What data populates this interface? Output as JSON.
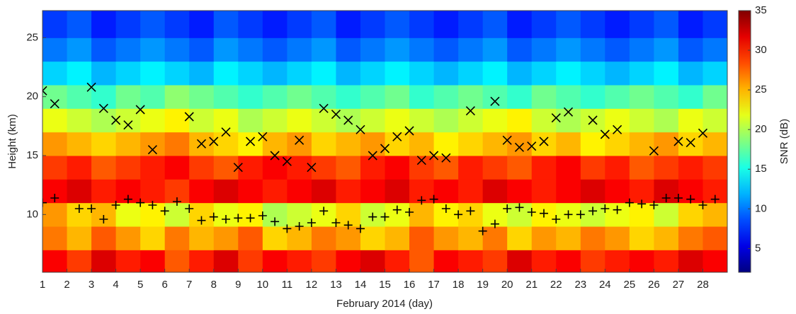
{
  "chart_data": {
    "type": "heatmap",
    "xlabel": "February 2014 (day)",
    "ylabel": "Height (km)",
    "xlim": [
      1,
      29
    ],
    "ylim": [
      5.1,
      27.3
    ],
    "xticks": [
      1,
      2,
      3,
      4,
      5,
      6,
      7,
      8,
      9,
      10,
      11,
      12,
      13,
      14,
      15,
      16,
      17,
      18,
      19,
      20,
      21,
      22,
      23,
      24,
      25,
      26,
      27,
      28
    ],
    "yticks": [
      10,
      15,
      20,
      25
    ],
    "x_edges": [
      1,
      2,
      3,
      4,
      5,
      6,
      7,
      8,
      9,
      10,
      11,
      12,
      13,
      14,
      15,
      16,
      17,
      18,
      19,
      20,
      21,
      22,
      23,
      24,
      25,
      26,
      27,
      28,
      29
    ],
    "y_edges": [
      5,
      7,
      9,
      11,
      13,
      15,
      17,
      19,
      21,
      23,
      25,
      27.3
    ],
    "z": [
      [
        31,
        29,
        32,
        30,
        31,
        28,
        30,
        32,
        29,
        31,
        30,
        29,
        31,
        32,
        30,
        28,
        31,
        30,
        29,
        32,
        30,
        31,
        29,
        30,
        31,
        30,
        32,
        31
      ],
      [
        27,
        25,
        28,
        26,
        24,
        27,
        25,
        26,
        28,
        24,
        25,
        27,
        26,
        24,
        25,
        28,
        26,
        25,
        27,
        24,
        26,
        25,
        27,
        26,
        24,
        25,
        27,
        28
      ],
      [
        26,
        24,
        25,
        22,
        23,
        21,
        24,
        22,
        23,
        20,
        21,
        22,
        24,
        21,
        22,
        25,
        23,
        24,
        22,
        21,
        23,
        22,
        21,
        22,
        23,
        21,
        24,
        25
      ],
      [
        31,
        32,
        30,
        31,
        30,
        29,
        31,
        32,
        31,
        30,
        31,
        32,
        30,
        31,
        32,
        30,
        31,
        30,
        32,
        31,
        30,
        31,
        32,
        31,
        30,
        32,
        31,
        30
      ],
      [
        29,
        30,
        28,
        29,
        30,
        31,
        29,
        28,
        30,
        31,
        30,
        29,
        28,
        30,
        31,
        29,
        28,
        30,
        29,
        28,
        30,
        31,
        29,
        30,
        28,
        29,
        30,
        29
      ],
      [
        26,
        25,
        24,
        25,
        26,
        27,
        25,
        24,
        23,
        25,
        26,
        24,
        25,
        26,
        24,
        25,
        23,
        24,
        25,
        26,
        24,
        25,
        23,
        24,
        25,
        26,
        24,
        25
      ],
      [
        22,
        21,
        20,
        21,
        22,
        23,
        21,
        22,
        20,
        21,
        22,
        21,
        20,
        21,
        22,
        21,
        20,
        21,
        22,
        23,
        21,
        20,
        21,
        22,
        21,
        20,
        22,
        21
      ],
      [
        18,
        17,
        16,
        18,
        17,
        19,
        18,
        17,
        16,
        17,
        18,
        17,
        16,
        17,
        18,
        16,
        17,
        18,
        17,
        16,
        18,
        17,
        16,
        17,
        18,
        17,
        16,
        18
      ],
      [
        13,
        14,
        12,
        13,
        14,
        13,
        12,
        14,
        13,
        12,
        13,
        14,
        12,
        13,
        14,
        13,
        12,
        13,
        14,
        12,
        13,
        14,
        13,
        12,
        13,
        14,
        12,
        13
      ],
      [
        10,
        11,
        9,
        10,
        11,
        10,
        9,
        11,
        10,
        9,
        10,
        11,
        9,
        10,
        11,
        10,
        9,
        10,
        11,
        9,
        10,
        11,
        10,
        9,
        10,
        11,
        9,
        10
      ],
      [
        8,
        9,
        7,
        8,
        9,
        8,
        7,
        9,
        8,
        7,
        8,
        9,
        7,
        8,
        9,
        8,
        7,
        8,
        9,
        7,
        8,
        9,
        8,
        7,
        8,
        9,
        7,
        8
      ]
    ],
    "colormap": "jet",
    "clim": [
      2,
      35
    ],
    "colorbar_ticks": [
      5,
      10,
      15,
      20,
      25,
      30,
      35
    ],
    "colorbar_label": "SNR (dB)",
    "series": [
      {
        "marker": "x",
        "color": "#000000",
        "x": [
          1,
          1.5,
          3,
          3.5,
          4,
          4.5,
          5,
          5.5,
          7,
          7.5,
          8,
          8.5,
          9,
          9.5,
          10,
          10.5,
          11,
          11.5,
          12,
          12.5,
          13,
          13.5,
          14,
          14.5,
          15,
          15.5,
          16,
          16.5,
          17,
          17.5,
          18.5,
          19.5,
          20,
          20.5,
          21,
          21.5,
          22,
          22.5,
          23.5,
          24,
          24.5,
          26,
          27,
          27.5,
          28
        ],
        "y": [
          20.5,
          19.4,
          20.8,
          19,
          18,
          17.6,
          18.9,
          15.5,
          18.3,
          16,
          16.2,
          17,
          14,
          16.2,
          16.6,
          15,
          14.5,
          16.3,
          14,
          19,
          18.5,
          18,
          17.2,
          15,
          15.6,
          16.6,
          17.1,
          14.6,
          15,
          14.8,
          18.8,
          19.6,
          16.3,
          15.7,
          15.8,
          16.2,
          18.2,
          18.7,
          18,
          16.8,
          17.2,
          15.4,
          16.2,
          16.1,
          16.9
        ]
      },
      {
        "marker": "+",
        "color": "#000000",
        "x": [
          1,
          1.5,
          2.5,
          3,
          3.5,
          4,
          4.5,
          5,
          5.5,
          6,
          6.5,
          7,
          7.5,
          8,
          8.5,
          9,
          9.5,
          10,
          10.5,
          11,
          11.5,
          12,
          12.5,
          13,
          13.5,
          14,
          14.5,
          15,
          15.5,
          16,
          16.5,
          17,
          17.5,
          18,
          18.5,
          19,
          19.5,
          20,
          20.5,
          21,
          21.5,
          22,
          22.5,
          23,
          23.5,
          24,
          24.5,
          25,
          25.5,
          26,
          26.5,
          27,
          27.5,
          28,
          28.5
        ],
        "y": [
          11,
          11.4,
          10.5,
          10.5,
          9.6,
          10.8,
          11.3,
          11,
          10.8,
          10.3,
          11.1,
          10.5,
          9.5,
          9.8,
          9.6,
          9.7,
          9.7,
          9.9,
          9.4,
          8.8,
          9,
          9.3,
          10.3,
          9.3,
          9.1,
          8.8,
          9.8,
          9.8,
          10.4,
          10.2,
          11.2,
          11.3,
          10.5,
          10,
          10.3,
          8.6,
          9.2,
          10.5,
          10.6,
          10.2,
          10.1,
          9.6,
          10,
          10,
          10.3,
          10.5,
          10.4,
          11,
          10.9,
          10.8,
          11.4,
          11.4,
          11.3,
          10.8,
          11.3
        ]
      }
    ]
  }
}
